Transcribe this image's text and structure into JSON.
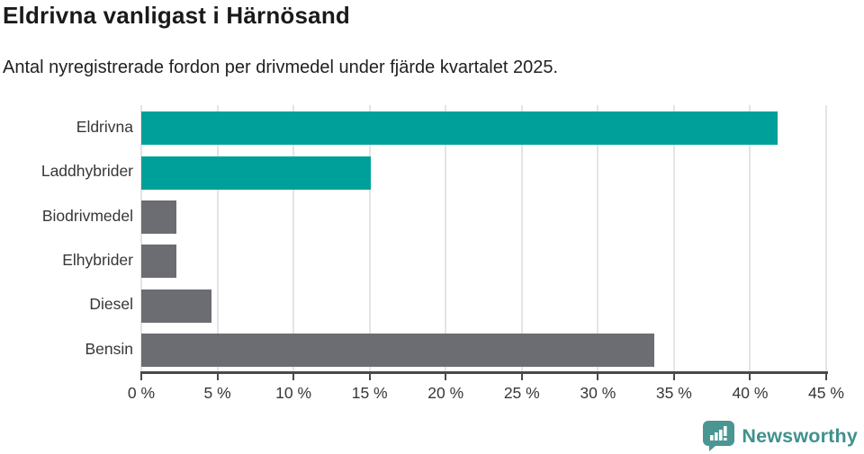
{
  "header": {
    "title": "Eldrivna vanligast i Härnösand",
    "subtitle": "Antal nyregistrerade fordon per drivmedel under fjärde kvartalet 2025."
  },
  "chart_data": {
    "type": "bar",
    "orientation": "horizontal",
    "title": "Eldrivna vanligast i Härnösand",
    "subtitle": "Antal nyregistrerade fordon per drivmedel under fjärde kvartalet 2025.",
    "categories": [
      "Eldrivna",
      "Laddhybrider",
      "Biodrivmedel",
      "Elhybrider",
      "Diesel",
      "Bensin"
    ],
    "values": [
      41.8,
      15.1,
      2.3,
      2.3,
      4.6,
      33.7
    ],
    "unit": "%",
    "bar_colors": [
      "#00a09a",
      "#00a09a",
      "#6c6d72",
      "#6c6d72",
      "#6c6d72",
      "#6c6d72"
    ],
    "xlabel": "",
    "ylabel": "",
    "xlim": [
      0,
      45
    ],
    "x_ticks": [
      {
        "label": "0 %",
        "value": 0
      },
      {
        "label": "5 %",
        "value": 5
      },
      {
        "label": "10 %",
        "value": 10
      },
      {
        "label": "15 %",
        "value": 15
      },
      {
        "label": "20 %",
        "value": 20
      },
      {
        "label": "25 %",
        "value": 25
      },
      {
        "label": "30 %",
        "value": 30
      },
      {
        "label": "35 %",
        "value": 35
      },
      {
        "label": "40 %",
        "value": 40
      },
      {
        "label": "45 %",
        "value": 45
      }
    ],
    "grid": true,
    "legend": false
  },
  "colors": {
    "accent_teal": "#00a09a",
    "neutral_gray": "#6c6d72",
    "gridline": "#e4e4e4",
    "axis": "#4a4a4a",
    "text_dark": "#1a1a1a",
    "text_label": "#373737",
    "brand_teal": "#3f918e"
  },
  "branding": {
    "logo_text": "Newsworthy",
    "logo_icon": "newsworthy-speech-bubble-chart-icon"
  }
}
